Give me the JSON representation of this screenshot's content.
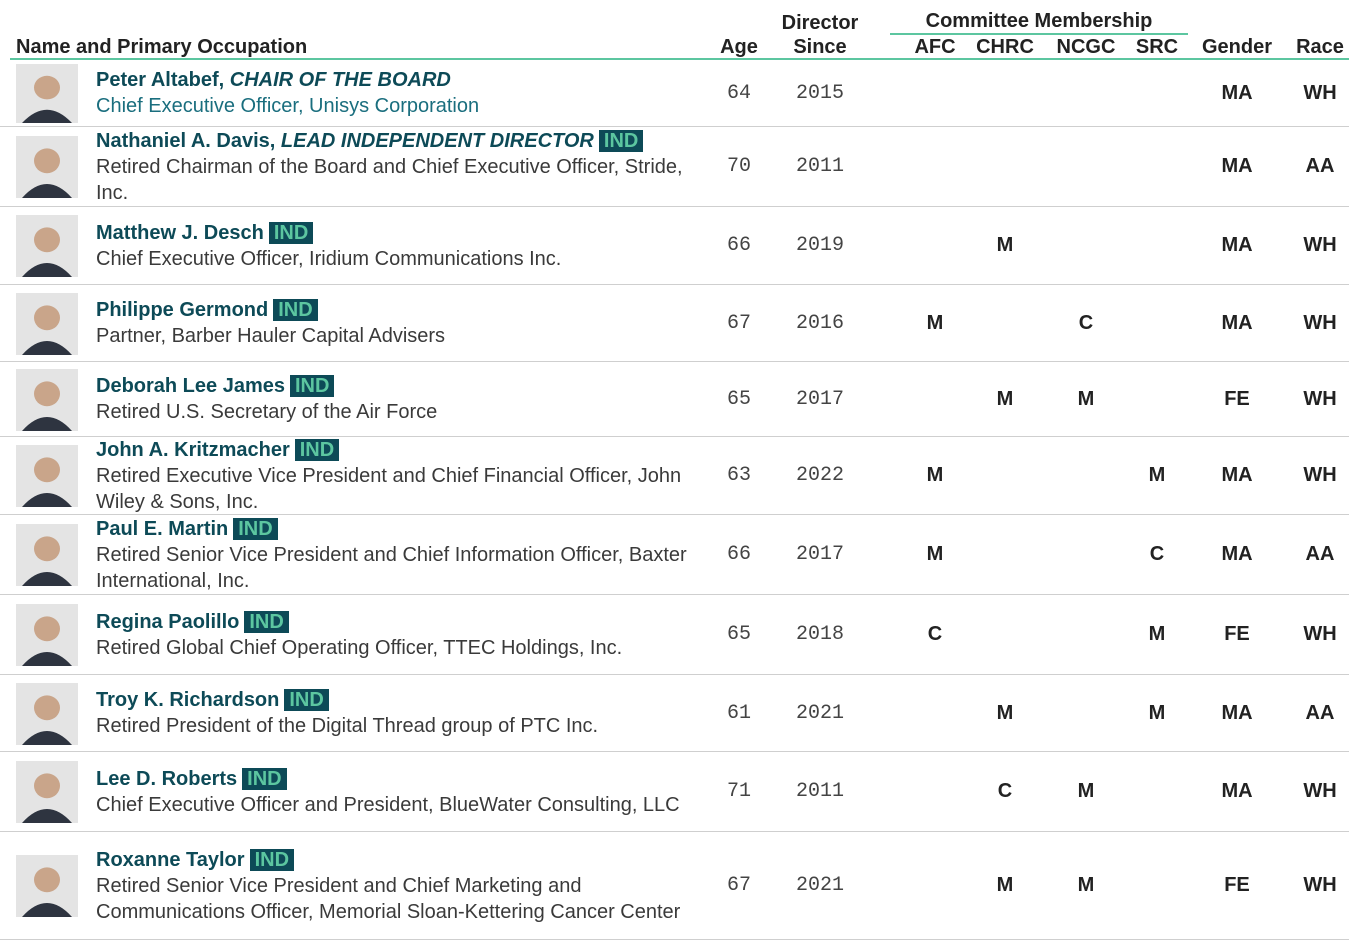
{
  "header": {
    "name": "Name and Primary Occupation",
    "age": "Age",
    "since": "Director Since",
    "committee": "Committee Membership",
    "afc": "AFC",
    "chrc": "CHRC",
    "ncgc": "NCGC",
    "src": "SRC",
    "gender": "Gender",
    "race": "Race"
  },
  "rows": [
    {
      "name": "Peter Altabef,",
      "role": "CHAIR OF THE BOARD",
      "badge": null,
      "occupation": "Chief Executive Officer, Unisys Corporation",
      "age": 64,
      "since": 2015,
      "afc": null,
      "chrc": null,
      "ncgc": null,
      "src": null,
      "gender": "MA",
      "race": "WH"
    },
    {
      "name": "Nathaniel A. Davis,",
      "role": "LEAD INDEPENDENT DIRECTOR",
      "badge": "IND",
      "occupation": "Retired Chairman of the Board and Chief Executive Officer, Stride, Inc.",
      "age": 70,
      "since": 2011,
      "afc": null,
      "chrc": null,
      "ncgc": null,
      "src": null,
      "gender": "MA",
      "race": "AA"
    },
    {
      "name": "Matthew J. Desch",
      "role": null,
      "badge": "IND",
      "occupation": "Chief Executive Officer, Iridium Communications Inc.",
      "age": 66,
      "since": 2019,
      "afc": null,
      "chrc": "M",
      "ncgc": null,
      "src": null,
      "gender": "MA",
      "race": "WH"
    },
    {
      "name": "Philippe Germond",
      "role": null,
      "badge": "IND",
      "occupation": "Partner, Barber Hauler Capital Advisers",
      "age": 67,
      "since": 2016,
      "afc": "M",
      "chrc": null,
      "ncgc": "C",
      "src": null,
      "gender": "MA",
      "race": "WH"
    },
    {
      "name": "Deborah Lee James",
      "role": null,
      "badge": "IND",
      "occupation": "Retired U.S. Secretary of the Air Force",
      "age": 65,
      "since": 2017,
      "afc": null,
      "chrc": "M",
      "ncgc": "M",
      "src": null,
      "gender": "FE",
      "race": "WH"
    },
    {
      "name": "John A. Kritzmacher",
      "role": null,
      "badge": "IND",
      "occupation": "Retired Executive Vice President and Chief Financial Officer, John Wiley & Sons, Inc.",
      "age": 63,
      "since": 2022,
      "afc": "M",
      "chrc": null,
      "ncgc": null,
      "src": "M",
      "gender": "MA",
      "race": "WH"
    },
    {
      "name": "Paul E. Martin",
      "role": null,
      "badge": "IND",
      "occupation": "Retired Senior Vice President and Chief Information Officer, Baxter International, Inc.",
      "age": 66,
      "since": 2017,
      "afc": "M",
      "chrc": null,
      "ncgc": null,
      "src": "C",
      "gender": "MA",
      "race": "AA"
    },
    {
      "name": "Regina Paolillo",
      "role": null,
      "badge": "IND",
      "occupation": "Retired Global Chief Operating Officer, TTEC Holdings, Inc.",
      "age": 65,
      "since": 2018,
      "afc": "C",
      "chrc": null,
      "ncgc": null,
      "src": "M",
      "gender": "FE",
      "race": "WH"
    },
    {
      "name": "Troy K. Richardson",
      "role": null,
      "badge": "IND",
      "occupation": "Retired President of the Digital Thread group of PTC Inc.",
      "age": 61,
      "since": 2021,
      "afc": null,
      "chrc": "M",
      "ncgc": null,
      "src": "M",
      "gender": "MA",
      "race": "AA"
    },
    {
      "name": "Lee D. Roberts",
      "role": null,
      "badge": "IND",
      "occupation": "Chief Executive Officer and President, BlueWater Consulting, LLC",
      "age": 71,
      "since": 2011,
      "afc": null,
      "chrc": "C",
      "ncgc": "M",
      "src": null,
      "gender": "MA",
      "race": "WH"
    },
    {
      "name": "Roxanne Taylor",
      "role": null,
      "badge": "IND",
      "occupation": "Retired Senior Vice President and Chief Marketing and Communications Officer, Memorial Sloan-Kettering Cancer Center",
      "age": 67,
      "since": 2021,
      "afc": null,
      "chrc": "M",
      "ncgc": "M",
      "src": null,
      "gender": "FE",
      "race": "WH"
    }
  ]
}
